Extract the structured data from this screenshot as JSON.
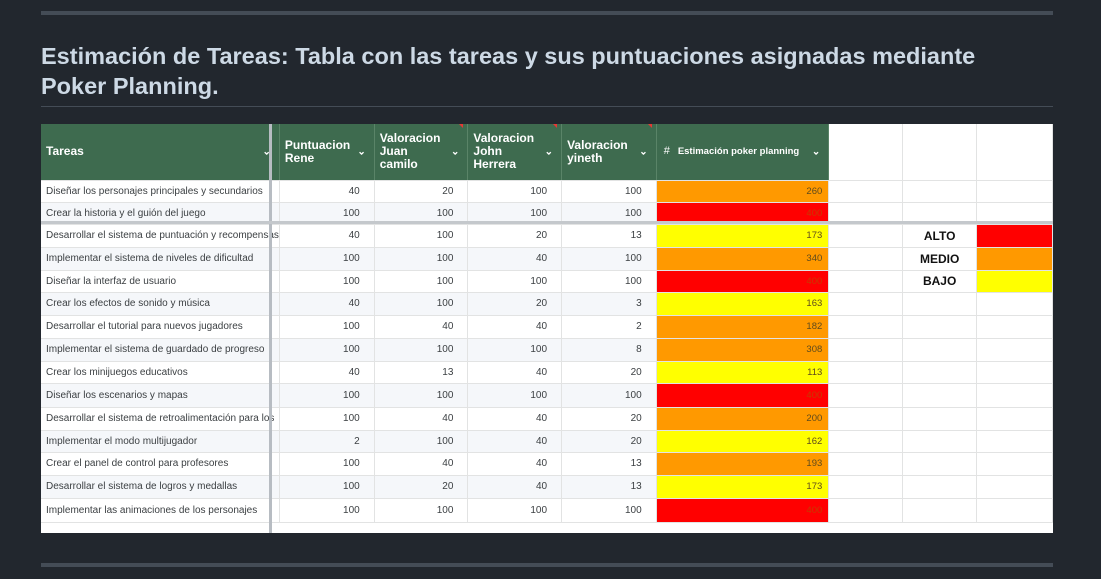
{
  "heading": "Estimación de Tareas: Tabla con las tareas y sus puntuaciones asignadas mediante Poker Planning.",
  "columns": {
    "tareas": "Tareas",
    "rene": "Puntuacion Rene",
    "juan": "Valoracion Juan camilo",
    "john": "Valoracion John Herrera",
    "yineth": "Valoracion yineth",
    "estimacion_hash": "#",
    "estimacion": "Estimación poker planning"
  },
  "rows": [
    {
      "task": "Diseñar los personajes principales y secundarios",
      "rene": "40",
      "juan": "20",
      "john": "100",
      "yineth": "100",
      "est": "260",
      "level": "orange"
    },
    {
      "task": "Crear la historia y el guión del juego",
      "rene": "100",
      "juan": "100",
      "john": "100",
      "yineth": "100",
      "est": "400",
      "level": "red"
    },
    {
      "task": "Desarrollar el sistema de puntuación y recompensas",
      "rene": "40",
      "juan": "100",
      "john": "20",
      "yineth": "13",
      "est": "173",
      "level": "yellow"
    },
    {
      "task": "Implementar el sistema de niveles de dificultad",
      "rene": "100",
      "juan": "100",
      "john": "40",
      "yineth": "100",
      "est": "340",
      "level": "orange"
    },
    {
      "task": "Diseñar la interfaz de usuario",
      "rene": "100",
      "juan": "100",
      "john": "100",
      "yineth": "100",
      "est": "400",
      "level": "red"
    },
    {
      "task": "Crear los efectos de sonido y música",
      "rene": "40",
      "juan": "100",
      "john": "20",
      "yineth": "3",
      "est": "163",
      "level": "yellow"
    },
    {
      "task": "Desarrollar el tutorial para nuevos jugadores",
      "rene": "100",
      "juan": "40",
      "john": "40",
      "yineth": "2",
      "est": "182",
      "level": "orange"
    },
    {
      "task": "Implementar el sistema de guardado de progreso",
      "rene": "100",
      "juan": "100",
      "john": "100",
      "yineth": "8",
      "est": "308",
      "level": "orange"
    },
    {
      "task": "Crear los minijuegos educativos",
      "rene": "40",
      "juan": "13",
      "john": "40",
      "yineth": "20",
      "est": "113",
      "level": "yellow"
    },
    {
      "task": "Diseñar los escenarios y mapas",
      "rene": "100",
      "juan": "100",
      "john": "100",
      "yineth": "100",
      "est": "400",
      "level": "red"
    },
    {
      "task": "Desarrollar el sistema de retroalimentación para los",
      "rene": "100",
      "juan": "40",
      "john": "40",
      "yineth": "20",
      "est": "200",
      "level": "orange"
    },
    {
      "task": "Implementar el modo multijugador",
      "rene": "2",
      "juan": "100",
      "john": "40",
      "yineth": "20",
      "est": "162",
      "level": "yellow"
    },
    {
      "task": "Crear el panel de control para profesores",
      "rene": "100",
      "juan": "40",
      "john": "40",
      "yineth": "13",
      "est": "193",
      "level": "orange"
    },
    {
      "task": "Desarrollar el sistema de logros y medallas",
      "rene": "100",
      "juan": "20",
      "john": "40",
      "yineth": "13",
      "est": "173",
      "level": "yellow"
    },
    {
      "task": "Implementar las animaciones de los personajes",
      "rene": "100",
      "juan": "100",
      "john": "100",
      "yineth": "100",
      "est": "400",
      "level": "red"
    }
  ],
  "legend": [
    {
      "label": "ALTO",
      "color": "#ff0000"
    },
    {
      "label": "MEDIO",
      "color": "#ff9900"
    },
    {
      "label": "BAJO",
      "color": "#ffff00"
    }
  ],
  "colors": {
    "red": "#ff0000",
    "orange": "#ff9900",
    "yellow": "#ffff00",
    "header": "#3e6b4f"
  }
}
